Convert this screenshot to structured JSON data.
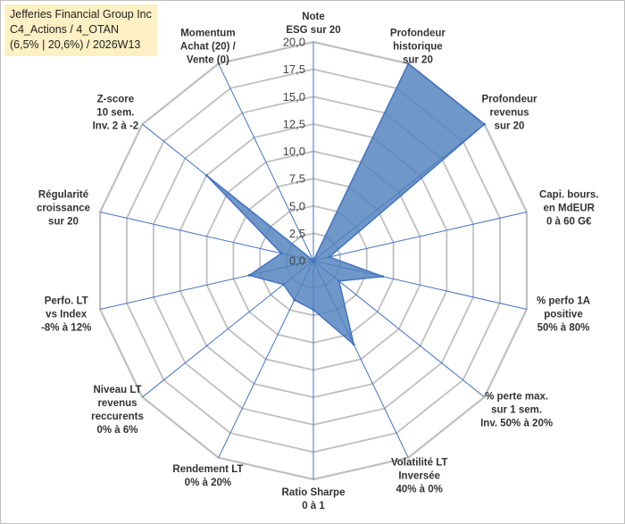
{
  "chart_data": {
    "type": "radar",
    "title_lines": [
      "Jefferies Financial Group Inc",
      "C4_Actions / 4_OTAN",
      "(6,5% | 20,6%) / 2026W13"
    ],
    "range": [
      0,
      20
    ],
    "ticks": [
      "0,0",
      "2,5",
      "5,0",
      "7,5",
      "10,0",
      "12,5",
      "15,0",
      "17,5",
      "20,0"
    ],
    "categories": [
      [
        "Note",
        "ESG sur 20"
      ],
      [
        "Profondeur",
        "historique",
        "sur 20"
      ],
      [
        "Profondeur",
        "revenus",
        "sur 20"
      ],
      [
        "Capi. bours.",
        "en MdEUR",
        "0 à 60 G€"
      ],
      [
        "% perfo 1A",
        "positive",
        "50% à 80%"
      ],
      [
        "% perte max.",
        "sur 1 sem.",
        "Inv. 50% à 20%"
      ],
      [
        "Volatilité LT",
        "Inversée",
        "40% à 0%"
      ],
      [
        "Ratio Sharpe",
        "0 à 1"
      ],
      [
        "Rendement LT",
        "0% à 20%"
      ],
      [
        "Niveau LT",
        "revenus",
        "reccurents",
        "0% à 6%"
      ],
      [
        "Perfo. LT",
        "vs Index",
        "-8% à 12%"
      ],
      [
        "Régularité",
        "croissance",
        "sur 20"
      ],
      [
        "Z-score",
        "10 sem.",
        "Inv. 2 à -2"
      ],
      [
        "Momentum",
        "Achat (20) /",
        "Vente (0)"
      ]
    ],
    "series": [
      {
        "values": [
          0,
          20,
          20,
          1.5,
          6.5,
          3,
          8.5,
          4.5,
          4,
          3.5,
          6,
          3,
          12.5,
          0
        ]
      }
    ],
    "colors": {
      "fill": "#4f81bd",
      "stroke": "#4472c4",
      "axis": "#4472c4",
      "grid": "#bfbfbf",
      "title_bg": "#fdf0c4"
    }
  }
}
